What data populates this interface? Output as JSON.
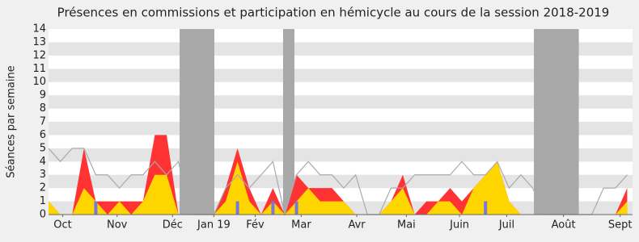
{
  "chart_data": {
    "type": "area",
    "title": "Présences en commissions et participation en hémicycle au cours de la session 2018-2019",
    "y_label": "Séances par semaine",
    "x": [
      0,
      1,
      2,
      3,
      4,
      5,
      6,
      7,
      8,
      9,
      10,
      11,
      12,
      13,
      14,
      15,
      16,
      17,
      18,
      19,
      20,
      21,
      22,
      23,
      24,
      25,
      26,
      27,
      28,
      29,
      30,
      31,
      32,
      33,
      34,
      35,
      36,
      37,
      38,
      39,
      40,
      41,
      42,
      43,
      44,
      45,
      46,
      47,
      48,
      49
    ],
    "xlim": [
      0,
      49.45
    ],
    "xticks": [
      {
        "value": 1.2,
        "label": "Oct"
      },
      {
        "value": 5.8,
        "label": "Nov"
      },
      {
        "value": 10.5,
        "label": "Déc"
      },
      {
        "value": 14.0,
        "label": "Jan 19"
      },
      {
        "value": 17.5,
        "label": "Fév"
      },
      {
        "value": 21.4,
        "label": "Mar"
      },
      {
        "value": 26.1,
        "label": "Avr"
      },
      {
        "value": 30.3,
        "label": "Mai"
      },
      {
        "value": 34.8,
        "label": "Juin"
      },
      {
        "value": 38.8,
        "label": "Juil"
      },
      {
        "value": 43.6,
        "label": "Août"
      },
      {
        "value": 48.4,
        "label": "Sept"
      }
    ],
    "ylim": [
      0,
      14
    ],
    "yticks": [
      0,
      1,
      2,
      3,
      4,
      5,
      6,
      7,
      8,
      9,
      10,
      11,
      12,
      13,
      14
    ],
    "grid": true,
    "shaded_ranges": [
      [
        11.1,
        14.04
      ],
      [
        19.86,
        20.82
      ],
      [
        41.1,
        44.9
      ]
    ],
    "shade_color": "#a8a8a8",
    "series": [
      {
        "kind": "area",
        "color": "#ff3333",
        "values": [
          1,
          0,
          0,
          5,
          1,
          1,
          1,
          1,
          1,
          6,
          6,
          0,
          0,
          0,
          0,
          2,
          5,
          2,
          0,
          2,
          0,
          3,
          2,
          2,
          2,
          1,
          0,
          0,
          0,
          1,
          3,
          0,
          1,
          1,
          2,
          1,
          2,
          3,
          4,
          1,
          0,
          0,
          0,
          0,
          0,
          0,
          0,
          0,
          0,
          2
        ]
      },
      {
        "kind": "area",
        "color": "#ffd500",
        "values": [
          1,
          0,
          0,
          2,
          1,
          0,
          1,
          0,
          1,
          3,
          3,
          0,
          0,
          0,
          0,
          1,
          4,
          1,
          0,
          1,
          0,
          1,
          2,
          1,
          1,
          1,
          0,
          0,
          0,
          1,
          2,
          0,
          0,
          1,
          1,
          0,
          2,
          3,
          4,
          1,
          0,
          0,
          0,
          0,
          0,
          0,
          0,
          0,
          0,
          1
        ]
      },
      {
        "kind": "line",
        "color": "#aaaaaa",
        "values": [
          5,
          4,
          5,
          5,
          3,
          3,
          2,
          3,
          3,
          4,
          3,
          4,
          0,
          0,
          0,
          2,
          3,
          2,
          3,
          4,
          0,
          3,
          4,
          3,
          3,
          2,
          3,
          0,
          0,
          2,
          2,
          3,
          3,
          3,
          3,
          4,
          3,
          3,
          4,
          2,
          3,
          2,
          0,
          0,
          0,
          0,
          0,
          2,
          2,
          3
        ]
      },
      {
        "kind": "bar",
        "color": "#7777dd",
        "values": [
          0,
          0,
          0,
          0,
          1,
          0,
          0,
          0,
          0,
          0,
          0,
          0,
          0,
          0,
          0,
          0,
          1,
          0,
          0,
          1,
          0,
          1,
          0,
          0,
          0,
          0,
          0,
          0,
          0,
          0,
          0,
          0,
          0,
          0,
          0,
          0,
          0,
          1,
          0,
          0,
          0,
          0,
          0,
          0,
          0,
          0,
          0,
          0,
          0,
          0
        ]
      }
    ]
  }
}
